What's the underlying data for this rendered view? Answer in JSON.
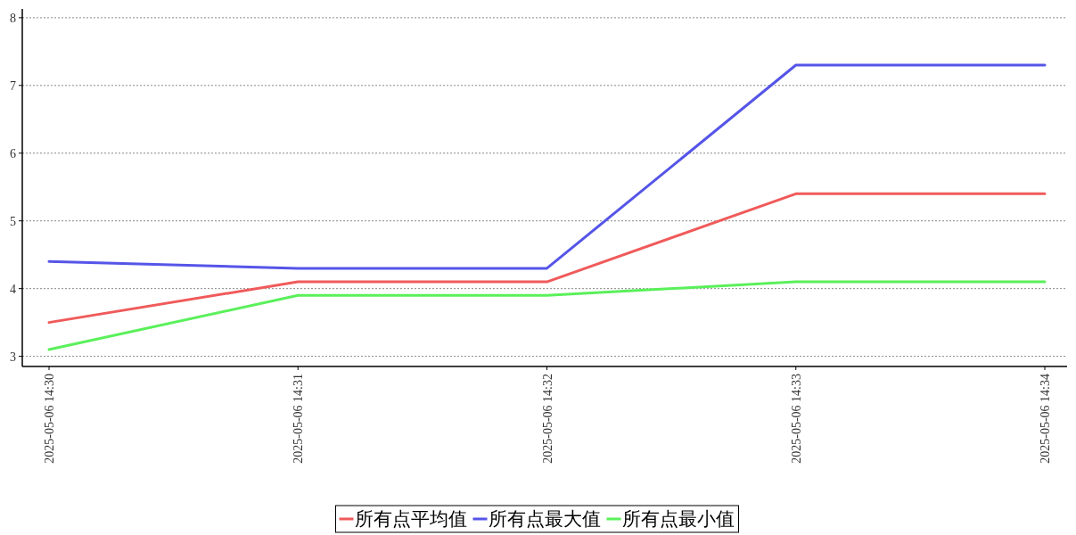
{
  "chart_data": {
    "type": "line",
    "categories": [
      "2025-05-06 14:30",
      "2025-05-06 14:31",
      "2025-05-06 14:32",
      "2025-05-06 14:33",
      "2025-05-06 14:34"
    ],
    "series": [
      {
        "name": "所有点平均值",
        "color": "#f05a5a",
        "values": [
          3.5,
          4.1,
          4.1,
          5.4,
          5.4
        ]
      },
      {
        "name": "所有点最大值",
        "color": "#5555e8",
        "values": [
          4.4,
          4.3,
          4.3,
          7.3,
          7.3
        ]
      },
      {
        "name": "所有点最小值",
        "color": "#5af05a",
        "values": [
          3.1,
          3.9,
          3.9,
          4.1,
          4.1
        ]
      }
    ],
    "ylim": [
      2.85,
      8.13
    ],
    "yticks": [
      3,
      4,
      5,
      6,
      7,
      8
    ],
    "grid": "y",
    "legend": "bottom"
  }
}
